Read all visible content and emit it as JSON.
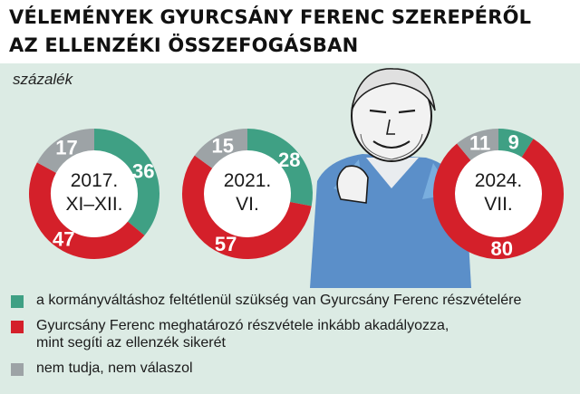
{
  "title_line1": "VÉLEMÉNYEK GYURCSÁNY FERENC SZEREPÉRŐL",
  "title_line2": "AZ ELLENZÉKI ÖSSZEFOGÁSBAN",
  "unit": "százalék",
  "colors": {
    "green": "#3fa084",
    "red": "#d4202a",
    "gray": "#9da3a6",
    "panel_bg": "#dcebe4"
  },
  "chart_data": {
    "type": "pie",
    "variant": "donut",
    "unit": "százalék",
    "legend": [
      {
        "key": "green",
        "label": "a kormányváltáshoz feltétlenül szükség van Gyurcsány Ferenc részvételére"
      },
      {
        "key": "red",
        "label": "Gyurcsány Ferenc meghatározó részvétele inkább akadályozza,\nmint segíti az ellenzék sikerét"
      },
      {
        "key": "gray",
        "label": "nem tudja, nem válaszol"
      }
    ],
    "donuts": [
      {
        "center_label": [
          "2017.",
          "XI–XII."
        ],
        "values": {
          "green": 36,
          "red": 47,
          "gray": 17
        }
      },
      {
        "center_label": [
          "2021.",
          "VI."
        ],
        "values": {
          "green": 28,
          "red": 57,
          "gray": 15
        }
      },
      {
        "center_label": [
          "2024.",
          "VII."
        ],
        "values": {
          "green": 9,
          "red": 80,
          "gray": 11
        }
      }
    ]
  }
}
